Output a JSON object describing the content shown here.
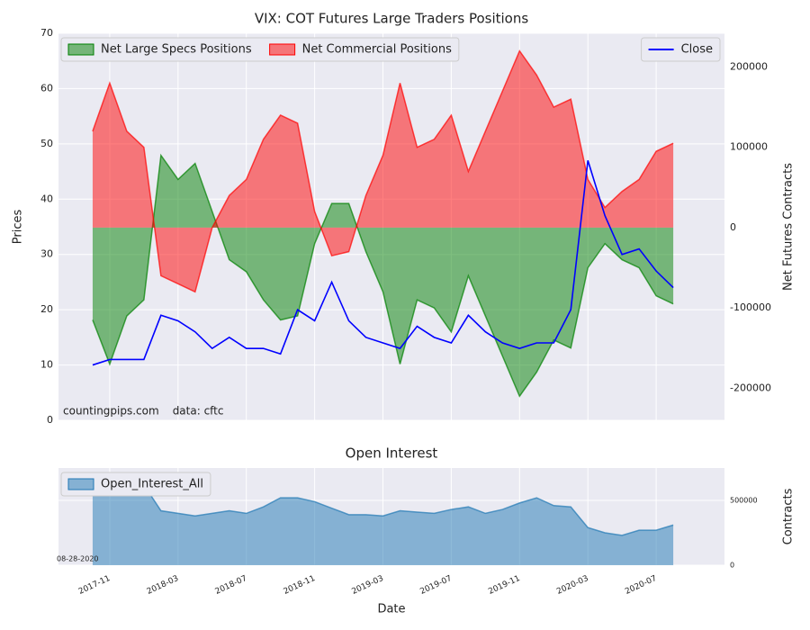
{
  "chart_data": [
    {
      "type": "area",
      "title": "VIX: COT Futures Large Traders Positions",
      "ylabel": "Prices",
      "y2label": "Net Futures Contracts",
      "x": [
        "2017-10",
        "2017-11",
        "2017-12",
        "2018-01",
        "2018-02",
        "2018-03",
        "2018-04",
        "2018-05",
        "2018-06",
        "2018-07",
        "2018-08",
        "2018-09",
        "2018-10",
        "2018-11",
        "2018-12",
        "2019-01",
        "2019-02",
        "2019-03",
        "2019-04",
        "2019-05",
        "2019-06",
        "2019-07",
        "2019-08",
        "2019-09",
        "2019-10",
        "2019-11",
        "2019-12",
        "2020-01",
        "2020-02",
        "2020-03",
        "2020-04",
        "2020-05",
        "2020-06",
        "2020-07",
        "2020-08"
      ],
      "xlim": [
        "2017-08",
        "2020-11"
      ],
      "ylim": [
        0,
        70
      ],
      "yticks": [
        0,
        10,
        20,
        30,
        40,
        50,
        60,
        70
      ],
      "y2lim": [
        -240000,
        242000
      ],
      "y2ticks": [
        -200000,
        -100000,
        0,
        100000,
        200000
      ],
      "grid": true,
      "legend": "upper left",
      "legend_line": "upper right",
      "annotations": [
        "countingpips.com",
        "data: cftc"
      ],
      "series": [
        {
          "name": "Net Large Specs Positions",
          "color": "#008000",
          "style": "area",
          "axis": "y2",
          "values": [
            -115000,
            -170000,
            -110000,
            -90000,
            90000,
            60000,
            80000,
            20000,
            -40000,
            -55000,
            -90000,
            -115000,
            -110000,
            -20000,
            30000,
            30000,
            -30000,
            -80000,
            -170000,
            -90000,
            -100000,
            -130000,
            -60000,
            -110000,
            -160000,
            -210000,
            -180000,
            -140000,
            -150000,
            -50000,
            -20000,
            -40000,
            -50000,
            -85000,
            -95000
          ]
        },
        {
          "name": "Net Commercial Positions",
          "color": "#ff0000",
          "style": "area",
          "axis": "y2",
          "values": [
            120000,
            180000,
            120000,
            100000,
            -60000,
            -70000,
            -80000,
            0,
            40000,
            60000,
            110000,
            140000,
            130000,
            20000,
            -35000,
            -30000,
            40000,
            90000,
            180000,
            100000,
            110000,
            140000,
            70000,
            120000,
            170000,
            220000,
            190000,
            150000,
            160000,
            60000,
            25000,
            45000,
            60000,
            95000,
            105000
          ]
        },
        {
          "name": "Close",
          "color": "#0000ff",
          "style": "line",
          "values": [
            10,
            11,
            11,
            11,
            19,
            18,
            16,
            13,
            15,
            13,
            13,
            12,
            20,
            18,
            25,
            18,
            15,
            14,
            13,
            17,
            15,
            14,
            19,
            16,
            14,
            13,
            14,
            14,
            20,
            47,
            37,
            30,
            31,
            27,
            24
          ]
        }
      ]
    },
    {
      "type": "area",
      "title": "Open Interest",
      "xlabel": "Date",
      "y2label": "Contracts",
      "x": [
        "2017-10",
        "2017-11",
        "2017-12",
        "2018-01",
        "2018-02",
        "2018-03",
        "2018-04",
        "2018-05",
        "2018-06",
        "2018-07",
        "2018-08",
        "2018-09",
        "2018-10",
        "2018-11",
        "2018-12",
        "2019-01",
        "2019-02",
        "2019-03",
        "2019-04",
        "2019-05",
        "2019-06",
        "2019-07",
        "2019-08",
        "2019-09",
        "2019-10",
        "2019-11",
        "2019-12",
        "2020-01",
        "2020-02",
        "2020-03",
        "2020-04",
        "2020-05",
        "2020-06",
        "2020-07",
        "2020-08"
      ],
      "xlim": [
        "2017-08",
        "2020-11"
      ],
      "xticks": [
        "2017-11",
        "2018-03",
        "2018-07",
        "2018-11",
        "2019-03",
        "2019-07",
        "2019-11",
        "2020-03",
        "2020-07"
      ],
      "y2lim": [
        0,
        750000
      ],
      "y2ticks": [
        0,
        500000
      ],
      "grid": true,
      "legend": "upper left",
      "annotations": [
        "08-28-2020"
      ],
      "series": [
        {
          "name": "Open_Interest_All",
          "color": "#1f77b4",
          "style": "area",
          "axis": "y2",
          "values": [
            680000,
            690000,
            620000,
            620000,
            420000,
            400000,
            380000,
            400000,
            420000,
            400000,
            450000,
            520000,
            520000,
            490000,
            440000,
            390000,
            390000,
            380000,
            420000,
            410000,
            400000,
            430000,
            450000,
            400000,
            430000,
            480000,
            520000,
            460000,
            450000,
            290000,
            250000,
            230000,
            270000,
            270000,
            310000
          ]
        }
      ]
    }
  ]
}
